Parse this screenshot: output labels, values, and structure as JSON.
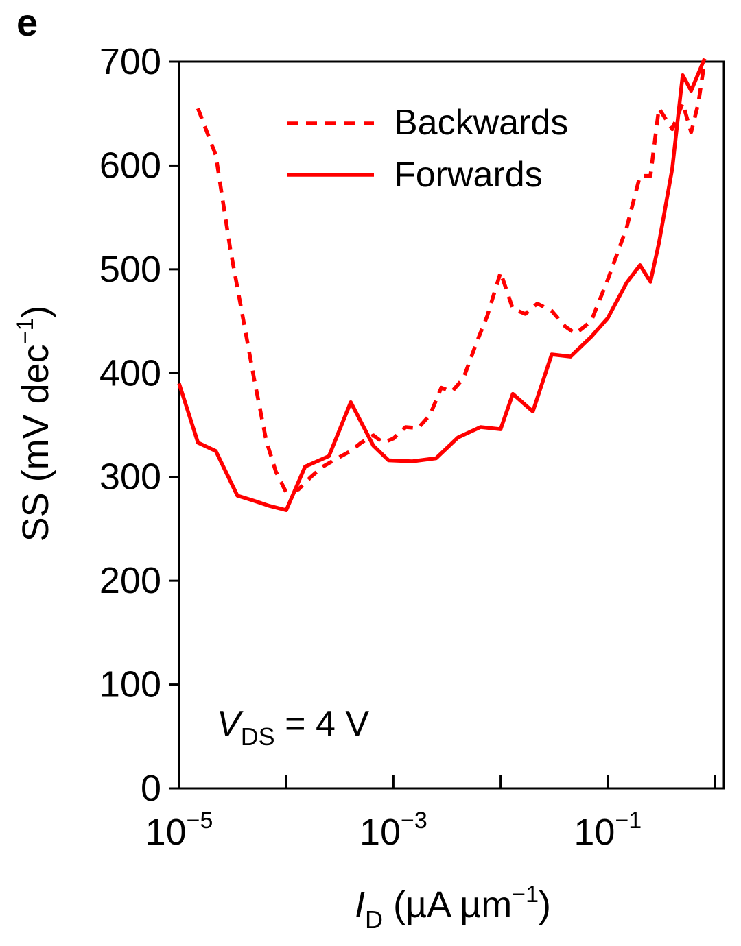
{
  "panel_label": "e",
  "chart_data": {
    "type": "line",
    "ylabel": "SS (mV dec",
    "ylabel_sup": "−1",
    "ylabel_close": ")",
    "xlabel_var": "I",
    "xlabel_sub": "D",
    "xlabel_unit": " (µA µm",
    "xlabel_sup": "−1",
    "xlabel_close": ")",
    "annotation": {
      "var": "V",
      "sub": "DS",
      "rest": " = 4 V"
    },
    "x_scale": "log",
    "xlim": [
      1e-05,
      1.0
    ],
    "ylim": [
      0,
      700
    ],
    "x_major_ticks": [
      {
        "value": 1e-05,
        "base": "10",
        "exp": "−5"
      },
      {
        "value": 0.001,
        "base": "10",
        "exp": "−3"
      },
      {
        "value": 0.1,
        "base": "10",
        "exp": "−1"
      }
    ],
    "x_minor_ticks": [
      0.0001,
      0.01,
      1
    ],
    "y_ticks": [
      0,
      100,
      200,
      300,
      400,
      500,
      600,
      700
    ],
    "grid": false,
    "legend_position": "top-right",
    "series": [
      {
        "name": "Backwards",
        "style": "dashed",
        "color": "#ff0000",
        "points": [
          [
            1.5e-05,
            655
          ],
          [
            2.2e-05,
            610
          ],
          [
            3e-05,
            520
          ],
          [
            4e-05,
            450
          ],
          [
            5e-05,
            395
          ],
          [
            6.5e-05,
            335
          ],
          [
            8e-05,
            305
          ],
          [
            0.0001,
            285
          ],
          [
            0.00013,
            288
          ],
          [
            0.00017,
            300
          ],
          [
            0.00022,
            310
          ],
          [
            0.0003,
            318
          ],
          [
            0.0004,
            325
          ],
          [
            0.0005,
            333
          ],
          [
            0.00065,
            340
          ],
          [
            0.0008,
            333
          ],
          [
            0.001,
            337
          ],
          [
            0.0013,
            348
          ],
          [
            0.0017,
            347
          ],
          [
            0.0022,
            360
          ],
          [
            0.0028,
            386
          ],
          [
            0.0035,
            382
          ],
          [
            0.0045,
            395
          ],
          [
            0.006,
            430
          ],
          [
            0.0075,
            455
          ],
          [
            0.01,
            497
          ],
          [
            0.013,
            462
          ],
          [
            0.017,
            457
          ],
          [
            0.022,
            467
          ],
          [
            0.03,
            460
          ],
          [
            0.04,
            445
          ],
          [
            0.05,
            438
          ],
          [
            0.07,
            450
          ],
          [
            0.1,
            490
          ],
          [
            0.15,
            540
          ],
          [
            0.2,
            590
          ],
          [
            0.25,
            590
          ],
          [
            0.3,
            655
          ],
          [
            0.4,
            635
          ],
          [
            0.5,
            660
          ],
          [
            0.6,
            632
          ],
          [
            0.7,
            660
          ],
          [
            0.8,
            700
          ]
        ]
      },
      {
        "name": "Forwards",
        "style": "solid",
        "color": "#ff0000",
        "points": [
          [
            1e-05,
            390
          ],
          [
            1.5e-05,
            333
          ],
          [
            2.2e-05,
            325
          ],
          [
            3.5e-05,
            282
          ],
          [
            5e-05,
            277
          ],
          [
            7e-05,
            272
          ],
          [
            0.0001,
            268
          ],
          [
            0.00015,
            310
          ],
          [
            0.00025,
            320
          ],
          [
            0.0004,
            372
          ],
          [
            0.00065,
            330
          ],
          [
            0.0009,
            316
          ],
          [
            0.0015,
            315
          ],
          [
            0.0025,
            318
          ],
          [
            0.004,
            338
          ],
          [
            0.0065,
            348
          ],
          [
            0.01,
            346
          ],
          [
            0.013,
            380
          ],
          [
            0.02,
            363
          ],
          [
            0.03,
            418
          ],
          [
            0.045,
            416
          ],
          [
            0.07,
            435
          ],
          [
            0.1,
            453
          ],
          [
            0.15,
            487
          ],
          [
            0.2,
            504
          ],
          [
            0.25,
            488
          ],
          [
            0.3,
            525
          ],
          [
            0.4,
            597
          ],
          [
            0.5,
            687
          ],
          [
            0.6,
            672
          ],
          [
            0.8,
            703
          ]
        ]
      }
    ]
  }
}
